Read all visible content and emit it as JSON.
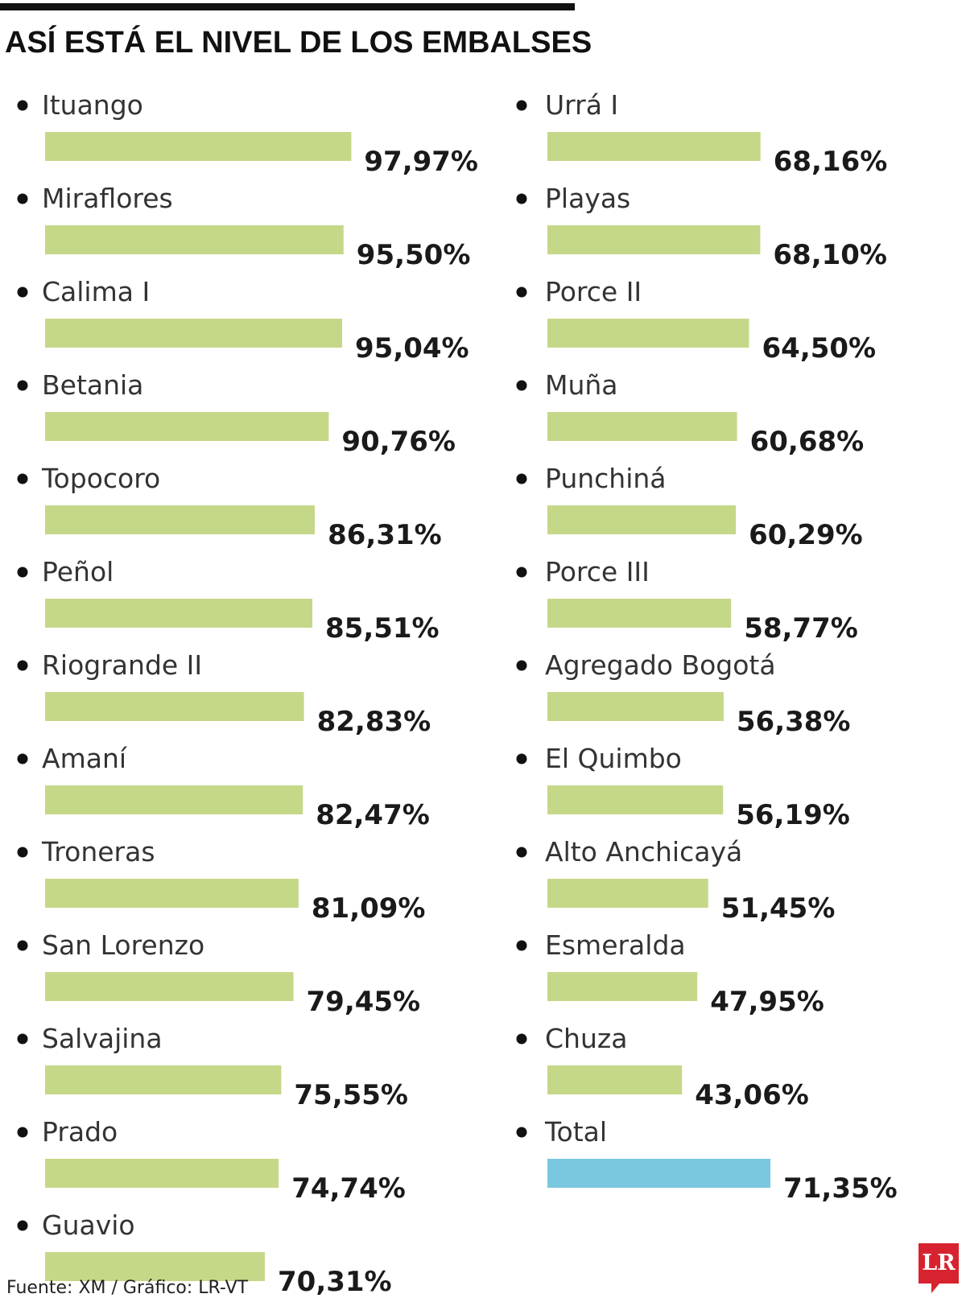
{
  "header": {
    "title": "ASÍ ESTÁ EL NIVEL DE LOS EMBALSES"
  },
  "footer": {
    "source": "Fuente: XM / Gráfico: LR-VT",
    "logo_text": "LR"
  },
  "colors": {
    "bar": "#c5d888",
    "total_bar": "#7ac8df"
  },
  "chart_data": {
    "type": "bar",
    "orientation": "horizontal",
    "unit": "%",
    "grid": false,
    "xlim": [
      0,
      100
    ],
    "columns": [
      {
        "items": [
          {
            "name": "Ituango",
            "value": 97.97,
            "label": "97,97%"
          },
          {
            "name": "Miraflores",
            "value": 95.5,
            "label": "95,50%"
          },
          {
            "name": "Calima I",
            "value": 95.04,
            "label": "95,04%"
          },
          {
            "name": "Betania",
            "value": 90.76,
            "label": "90,76%"
          },
          {
            "name": "Topocoro",
            "value": 86.31,
            "label": "86,31%"
          },
          {
            "name": "Peñol",
            "value": 85.51,
            "label": "85,51%"
          },
          {
            "name": "Riogrande II",
            "value": 82.83,
            "label": "82,83%"
          },
          {
            "name": "Amaní",
            "value": 82.47,
            "label": "82,47%"
          },
          {
            "name": "Troneras",
            "value": 81.09,
            "label": "81,09%"
          },
          {
            "name": "San Lorenzo",
            "value": 79.45,
            "label": "79,45%"
          },
          {
            "name": "Salvajina",
            "value": 75.55,
            "label": "75,55%"
          },
          {
            "name": "Prado",
            "value": 74.74,
            "label": "74,74%"
          },
          {
            "name": "Guavio",
            "value": 70.31,
            "label": "70,31%"
          }
        ]
      },
      {
        "items": [
          {
            "name": "Urrá I",
            "value": 68.16,
            "label": "68,16%"
          },
          {
            "name": "Playas",
            "value": 68.1,
            "label": "68,10%"
          },
          {
            "name": "Porce II",
            "value": 64.5,
            "label": "64,50%"
          },
          {
            "name": "Muña",
            "value": 60.68,
            "label": "60,68%"
          },
          {
            "name": "Punchiná",
            "value": 60.29,
            "label": "60,29%"
          },
          {
            "name": "Porce III",
            "value": 58.77,
            "label": "58,77%"
          },
          {
            "name": "Agregado Bogotá",
            "value": 56.38,
            "label": "56,38%"
          },
          {
            "name": "El Quimbo",
            "value": 56.19,
            "label": "56,19%"
          },
          {
            "name": "Alto Anchicayá",
            "value": 51.45,
            "label": "51,45%"
          },
          {
            "name": "Esmeralda",
            "value": 47.95,
            "label": "47,95%"
          },
          {
            "name": "Chuza",
            "value": 43.06,
            "label": "43,06%"
          },
          {
            "name": "Total",
            "value": 71.35,
            "label": "71,35%",
            "highlight": true
          }
        ]
      }
    ]
  }
}
